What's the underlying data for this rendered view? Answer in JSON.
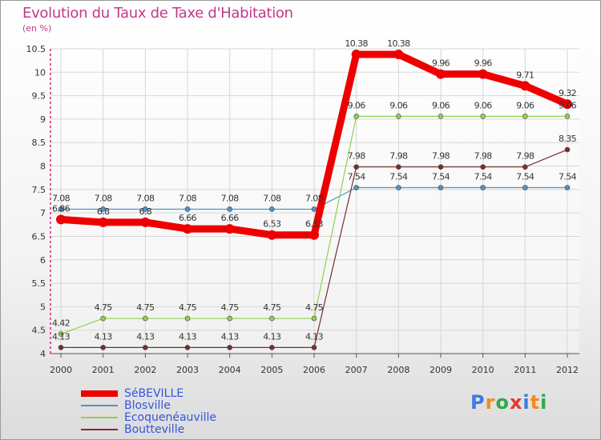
{
  "title": "Evolution du Taux de Taxe d'Habitation",
  "subtitle": "(en %)",
  "logo": {
    "text": "Proxiti",
    "letter_colors": [
      "#3d7be0",
      "#f08a1c",
      "#2fa84f",
      "#e03a2f",
      "#3d7be0",
      "#f08a1c",
      "#2fa84f"
    ]
  },
  "chart_data": {
    "type": "line",
    "title": "Evolution du Taux de Taxe d'Habitation",
    "ylabel": "(en %)",
    "xlabel": "",
    "ylim": [
      4,
      10.5
    ],
    "yticks": [
      "4",
      "4.5",
      "5",
      "5.5",
      "6",
      "6.5",
      "7",
      "7.5",
      "8",
      "8.5",
      "9",
      "9.5",
      "10",
      "10.5"
    ],
    "categories": [
      "2000",
      "2001",
      "2002",
      "2003",
      "2004",
      "2005",
      "2006",
      "2007",
      "2008",
      "2009",
      "2010",
      "2011",
      "2012"
    ],
    "legend_position": "bottom-left",
    "series": [
      {
        "name": "SéBEVILLE",
        "color": "#ee0000",
        "values": [
          6.86,
          6.8,
          6.8,
          6.66,
          6.66,
          6.53,
          6.53,
          10.38,
          10.38,
          9.96,
          9.96,
          9.71,
          9.32
        ],
        "labels": [
          "6.86",
          "6.8",
          "6.8",
          "6.66",
          "6.66",
          "6.53",
          "6.53",
          "10.38",
          "10.38",
          "9.96",
          "9.96",
          "9.71",
          "9.32"
        ]
      },
      {
        "name": "Blosville",
        "color": "#4f93c6",
        "values": [
          7.08,
          7.08,
          7.08,
          7.08,
          7.08,
          7.08,
          7.08,
          7.54,
          7.54,
          7.54,
          7.54,
          7.54,
          7.54
        ],
        "labels": [
          "7.08",
          "7.08",
          "7.08",
          "7.08",
          "7.08",
          "7.08",
          "7.08",
          "7.54",
          "7.54",
          "7.54",
          "7.54",
          "7.54",
          "7.54"
        ]
      },
      {
        "name": "Ecoqueneauville",
        "color": "#8fd14f",
        "values": [
          4.42,
          4.75,
          4.75,
          4.75,
          4.75,
          4.75,
          4.75,
          9.06,
          9.06,
          9.06,
          9.06,
          9.06,
          9.06
        ],
        "labels": [
          "4.42",
          "4.75",
          "4.75",
          "4.75",
          "4.75",
          "4.75",
          "4.75",
          "9.06",
          "9.06",
          "9.06",
          "9.06",
          "9.06",
          "9.06"
        ]
      },
      {
        "name": "Boutteville",
        "color": "#7a2e2e",
        "values": [
          4.13,
          4.13,
          4.13,
          4.13,
          4.13,
          4.13,
          4.13,
          7.98,
          7.98,
          7.98,
          7.98,
          7.98,
          8.35
        ],
        "labels": [
          "4.13",
          "4.13",
          "4.13",
          "4.13",
          "4.13",
          "4.13",
          "4.13",
          "7.98",
          "7.98",
          "7.98",
          "7.98",
          "7.98",
          "8.35"
        ]
      }
    ]
  },
  "legend": [
    {
      "label": "SéBEVILLE",
      "color": "#ee0000"
    },
    {
      "label": "Blosville",
      "color": "#4f93c6"
    },
    {
      "label": "Ecoquenéauville",
      "color": "#8fd14f"
    },
    {
      "label": "Boutteville",
      "color": "#7a2e2e"
    }
  ]
}
